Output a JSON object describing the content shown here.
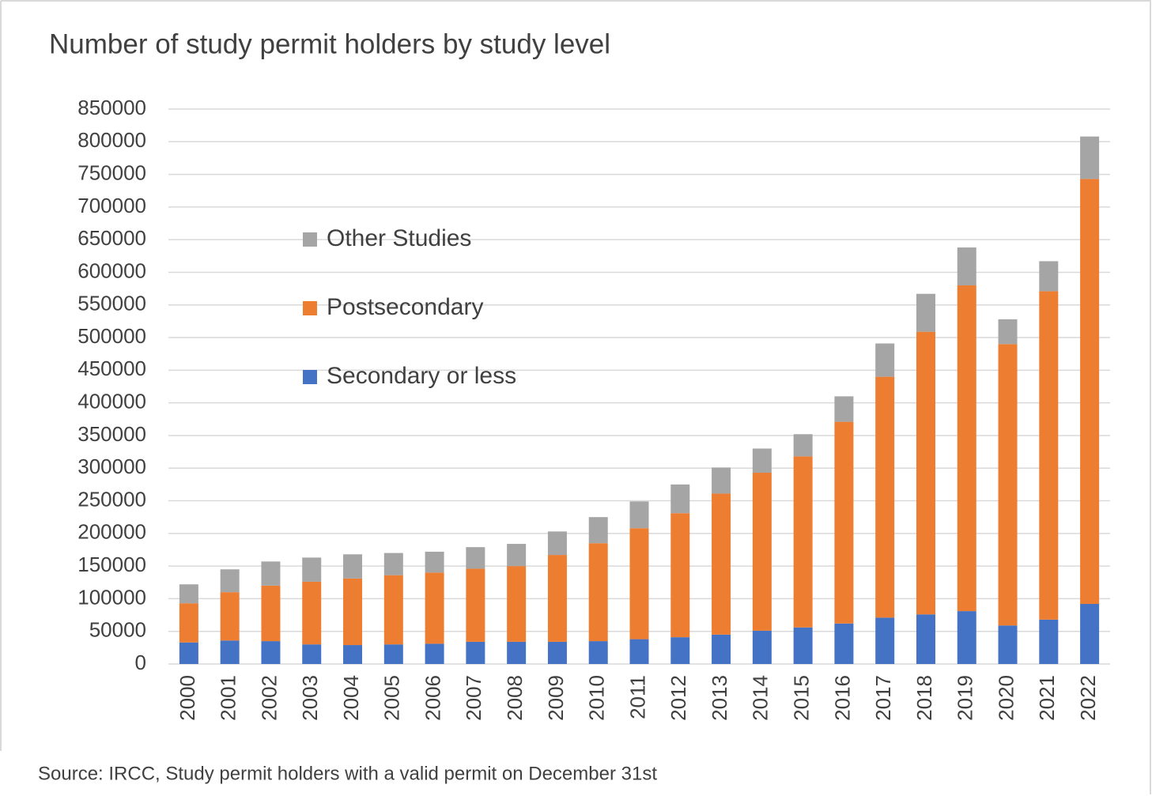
{
  "chart_data": {
    "type": "stacked_bar",
    "title": "Number of study permit holders by study level",
    "source": "Source: IRCC, Study permit holders with a valid permit on December 31st",
    "categories": [
      "2000",
      "2001",
      "2002",
      "2003",
      "2004",
      "2005",
      "2006",
      "2007",
      "2008",
      "2009",
      "2010",
      "2011",
      "2012",
      "2013",
      "2014",
      "2015",
      "2016",
      "2017",
      "2018",
      "2019",
      "2020",
      "2021",
      "2022"
    ],
    "series": [
      {
        "name": "Secondary or less",
        "color": "#4472c4",
        "values": [
          33000,
          36000,
          35000,
          30000,
          29000,
          30000,
          31000,
          34000,
          34000,
          34000,
          35000,
          38000,
          41000,
          45000,
          51000,
          56000,
          62000,
          71000,
          76000,
          81000,
          59000,
          68000,
          92000
        ]
      },
      {
        "name": "Postsecondary",
        "color": "#ed7d31",
        "values": [
          60000,
          74000,
          85000,
          96000,
          102000,
          106000,
          109000,
          112000,
          116000,
          133000,
          150000,
          170000,
          190000,
          216000,
          242000,
          262000,
          309000,
          369000,
          433000,
          499000,
          431000,
          503000,
          651000
        ]
      },
      {
        "name": "Other Studies",
        "color": "#a5a5a5",
        "values": [
          29000,
          35000,
          37000,
          37000,
          37000,
          34000,
          32000,
          33000,
          34000,
          36000,
          40000,
          41000,
          44000,
          40000,
          37000,
          34000,
          39000,
          51000,
          58000,
          58000,
          38000,
          46000,
          65000
        ]
      }
    ],
    "ylim": [
      0,
      850000
    ],
    "yticks": [
      0,
      50000,
      100000,
      150000,
      200000,
      250000,
      300000,
      350000,
      400000,
      450000,
      500000,
      550000,
      600000,
      650000,
      700000,
      750000,
      800000,
      850000
    ],
    "grid": true,
    "legend": "inside-left"
  }
}
